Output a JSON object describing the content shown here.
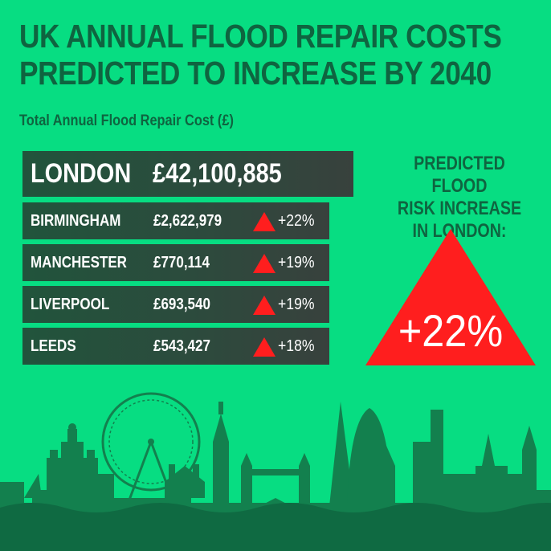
{
  "title_line1": "UK ANNUAL FLOOD REPAIR COSTS",
  "title_line2": "PREDICTED TO INCREASE BY 2040",
  "subtitle": "Total Annual Flood Repair Cost (£)",
  "rows": [
    {
      "city": "LONDON",
      "cost": "£42,100,885"
    },
    {
      "city": "BIRMINGHAM",
      "cost": "£2,622,979",
      "change": "+22%"
    },
    {
      "city": "MANCHESTER",
      "cost": "£770,114",
      "change": "+19%"
    },
    {
      "city": "LIVERPOOL",
      "cost": "£693,540",
      "change": "+19%"
    },
    {
      "city": "LEEDS",
      "cost": "£543,427",
      "change": "+18%"
    }
  ],
  "risk_label_line1": "PREDICTED FLOOD",
  "risk_label_line2": "RISK INCREASE",
  "risk_label_line3": "IN LONDON:",
  "risk_value": "+22%",
  "colors": {
    "background": "#07dd82",
    "title_text": "#0f6440",
    "row_dark": "#2c4b3d",
    "increase_red": "#ff1e1e",
    "skyline": "#13804e",
    "water": "#0f6a42"
  },
  "icons": {
    "increase": "red-up-triangle-icon",
    "skyline": "uk-city-skyline-illustration"
  }
}
